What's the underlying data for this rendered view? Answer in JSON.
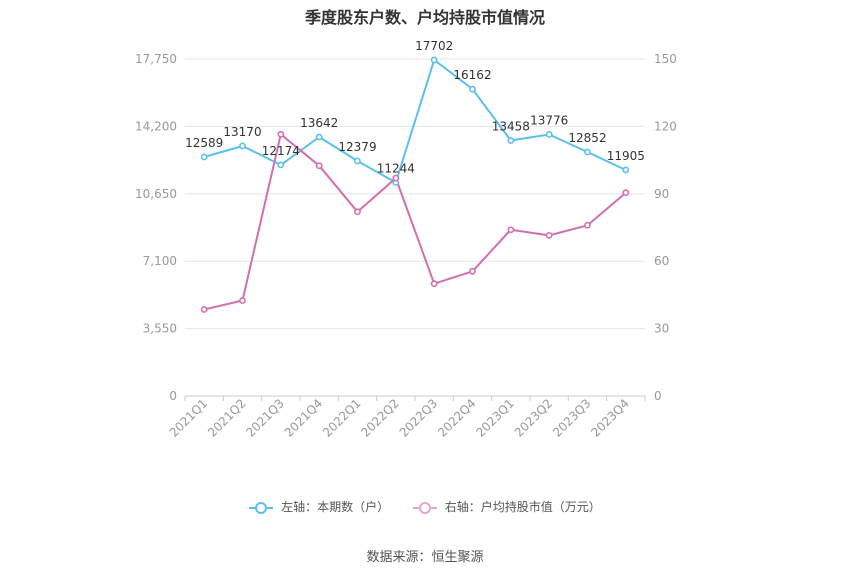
{
  "title": "季度股东户数、户均持股市值情况",
  "source": "数据来源：恒生聚源",
  "colors": {
    "left": "#5bc0eb",
    "right": "#d36fb0",
    "grid": "#e6e6e6",
    "axis_text": "#999999"
  },
  "chart_data": {
    "type": "line",
    "title": "季度股东户数、户均持股市值情况",
    "categories": [
      "2021Q1",
      "2021Q2",
      "2021Q3",
      "2021Q4",
      "2022Q1",
      "2022Q2",
      "2022Q3",
      "2022Q4",
      "2023Q1",
      "2023Q2",
      "2023Q3",
      "2023Q4"
    ],
    "left_axis": {
      "ylim": [
        0,
        17750
      ],
      "ticks": [
        "0",
        "3,550",
        "7,100",
        "10,650",
        "14,200",
        "17,750"
      ]
    },
    "right_axis": {
      "ylim": [
        0,
        150
      ],
      "ticks": [
        "0",
        "30",
        "60",
        "90",
        "120",
        "150"
      ]
    },
    "grid": true,
    "legend_position": "bottom",
    "series": [
      {
        "name": "左轴：本期数（户）",
        "axis": "left",
        "color": "#5bc0eb",
        "values": [
          12589,
          13170,
          12174,
          13642,
          12379,
          11244,
          17702,
          16162,
          13458,
          13776,
          12852,
          11905
        ],
        "labels": [
          "12589",
          "13170",
          "12174",
          "13642",
          "12379",
          "11244",
          "17702",
          "16162",
          "13458",
          "13776",
          "12852",
          "11905"
        ]
      },
      {
        "name": "右轴：户均持股市值（万元）",
        "axis": "right",
        "color": "#d36fb0",
        "values": [
          38.5,
          42.5,
          116.5,
          102.5,
          82,
          97,
          50,
          55.5,
          74,
          71.5,
          76,
          90.5
        ]
      }
    ]
  }
}
